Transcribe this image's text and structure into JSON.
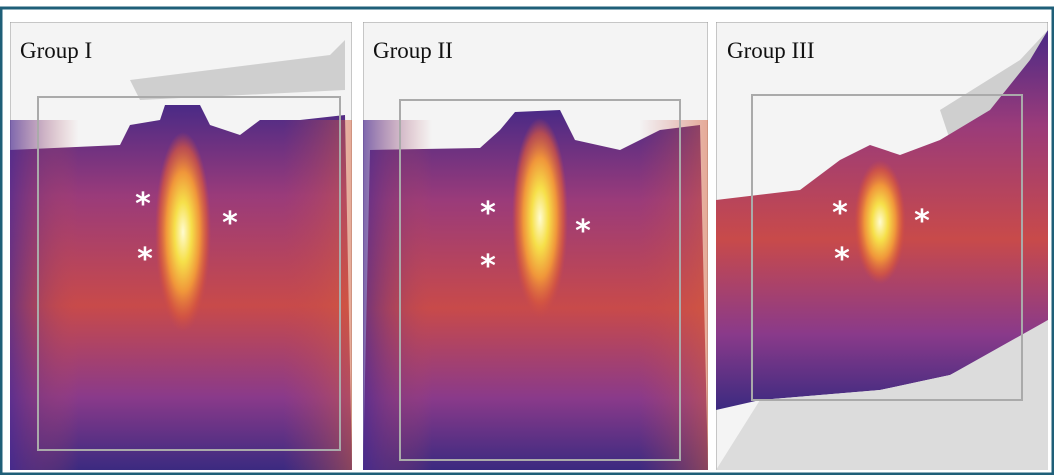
{
  "panels": [
    {
      "label": "Group I",
      "markers": [
        "*",
        "*",
        "*"
      ]
    },
    {
      "label": "Group II",
      "markers": [
        "*",
        "*",
        "*"
      ]
    },
    {
      "label": "Group III",
      "markers": [
        "*",
        "*",
        "*"
      ]
    }
  ]
}
